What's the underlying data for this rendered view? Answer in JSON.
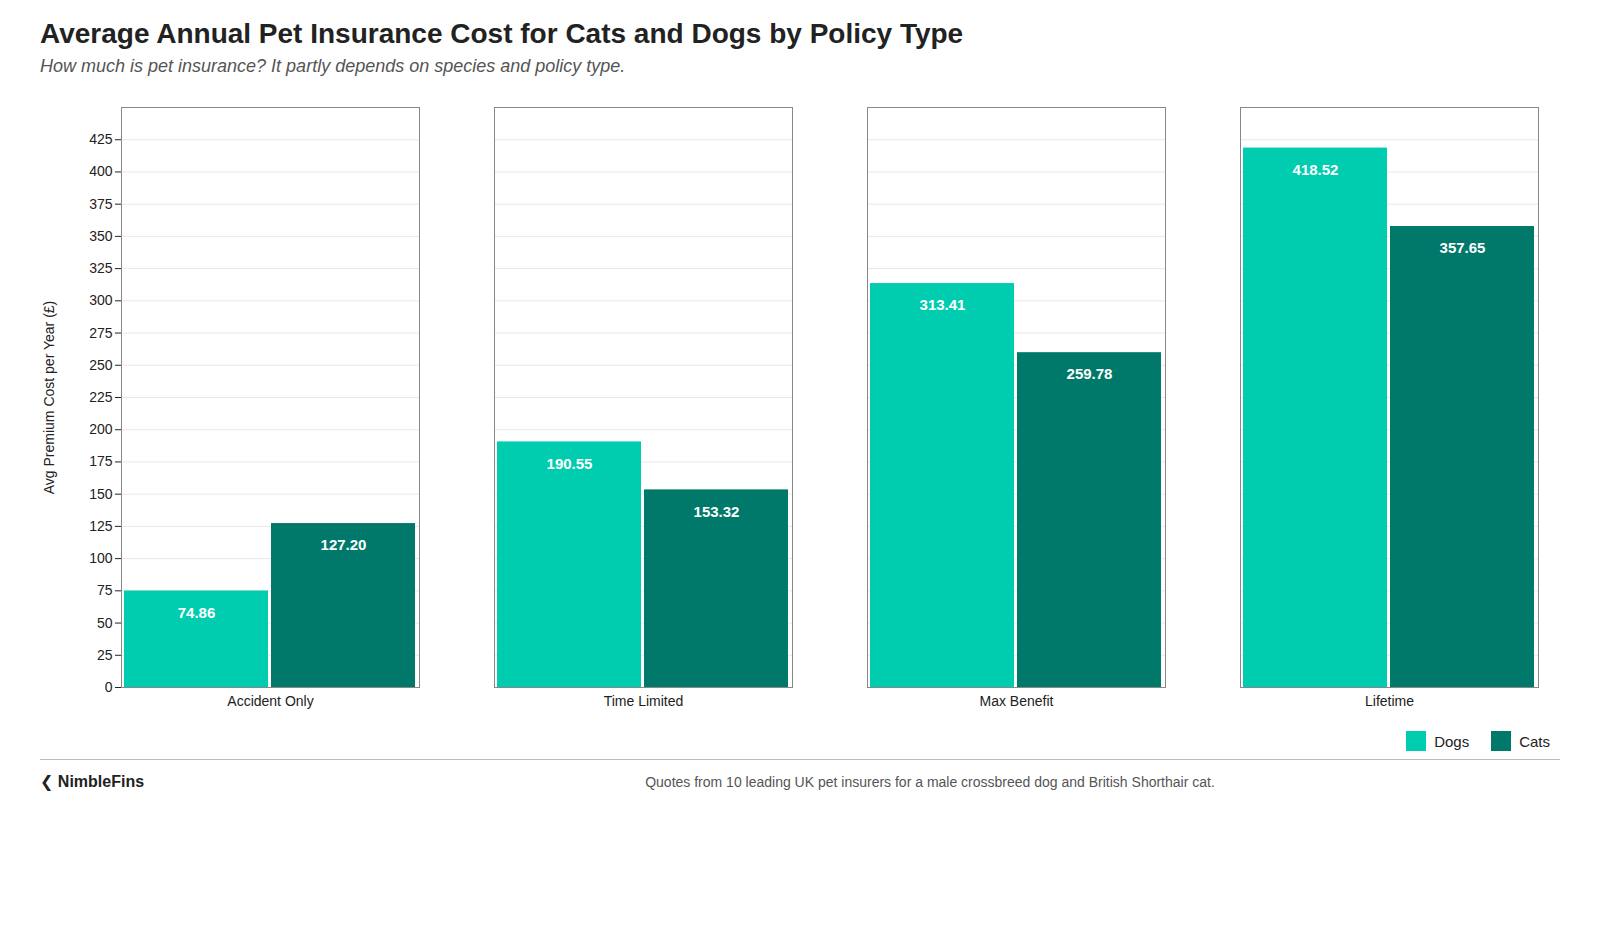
{
  "chart_data": {
    "type": "bar",
    "title": "Average Annual Pet Insurance Cost for Cats and Dogs by Policy Type",
    "subtitle": "How much is pet insurance? It partly depends on species and policy type.",
    "ylabel": "Avg Premium Cost per Year (£)",
    "categories": [
      "Accident Only",
      "Time Limited",
      "Max Benefit",
      "Lifetime"
    ],
    "series": [
      {
        "name": "Dogs",
        "color": "#00CDB0",
        "values": [
          74.86,
          190.55,
          313.41,
          418.52
        ],
        "value_labels": [
          "74.86",
          "190.55",
          "313.41",
          "418.52"
        ]
      },
      {
        "name": "Cats",
        "color": "#00796B",
        "values": [
          127.2,
          153.32,
          259.78,
          357.65
        ],
        "value_labels": [
          "127.20",
          "153.32",
          "259.78",
          "357.65"
        ]
      }
    ],
    "ylim": [
      0,
      450
    ],
    "yticks": [
      0,
      25,
      50,
      75,
      100,
      125,
      150,
      175,
      200,
      225,
      250,
      275,
      300,
      325,
      350,
      375,
      400,
      425
    ],
    "grid": true,
    "legend": "bottom",
    "data_labels": true,
    "annotations": [
      "❮  NimbleFins",
      "Quotes from 10 leading UK pet insurers for a male crossbreed dog and British Shorthair cat."
    ]
  }
}
